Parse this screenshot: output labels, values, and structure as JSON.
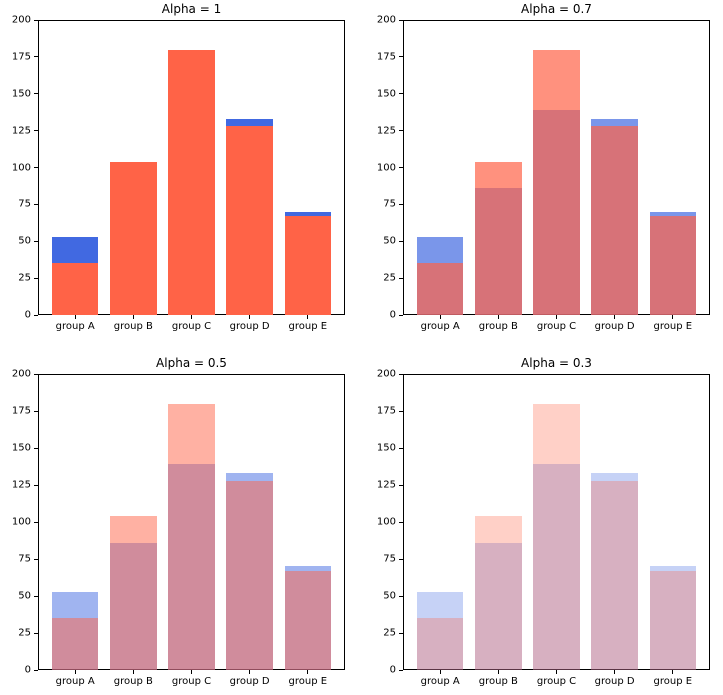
{
  "figure": {
    "background": "#ffffff",
    "text_color": "#000000",
    "spine_color": "#000000",
    "series_colors": {
      "blue": "#4169e1",
      "red": "#ff6347"
    }
  },
  "chart_data": [
    {
      "type": "bar",
      "title": "Alpha = 1",
      "alpha": 1,
      "categories": [
        "group A",
        "group B",
        "group C",
        "group D",
        "group E"
      ],
      "series": [
        {
          "name": "blue",
          "color": "#4169e1",
          "values": [
            53,
            86,
            139,
            133,
            70
          ]
        },
        {
          "name": "red",
          "color": "#ff6347",
          "values": [
            35,
            104,
            180,
            128,
            67
          ]
        }
      ],
      "draw_order": "red bars drawn over blue bars",
      "ylim": [
        0,
        200
      ],
      "yticks": [
        0,
        25,
        50,
        75,
        100,
        125,
        150,
        175,
        200
      ],
      "xlim": [
        -0.64,
        4.64
      ],
      "bar_width": 0.8,
      "grid": false,
      "legend": null
    },
    {
      "type": "bar",
      "title": "Alpha = 0.7",
      "alpha": 0.7,
      "categories": [
        "group A",
        "group B",
        "group C",
        "group D",
        "group E"
      ],
      "series": [
        {
          "name": "blue",
          "color": "#4169e1",
          "values": [
            53,
            86,
            139,
            133,
            70
          ]
        },
        {
          "name": "red",
          "color": "#ff6347",
          "values": [
            35,
            104,
            180,
            128,
            67
          ]
        }
      ],
      "draw_order": "red bars drawn over blue bars",
      "ylim": [
        0,
        200
      ],
      "yticks": [
        0,
        25,
        50,
        75,
        100,
        125,
        150,
        175,
        200
      ],
      "xlim": [
        -0.64,
        4.64
      ],
      "bar_width": 0.8,
      "grid": false,
      "legend": null
    },
    {
      "type": "bar",
      "title": "Alpha = 0.5",
      "alpha": 0.5,
      "categories": [
        "group A",
        "group B",
        "group C",
        "group D",
        "group E"
      ],
      "series": [
        {
          "name": "blue",
          "color": "#4169e1",
          "values": [
            53,
            86,
            139,
            133,
            70
          ]
        },
        {
          "name": "red",
          "color": "#ff6347",
          "values": [
            35,
            104,
            180,
            128,
            67
          ]
        }
      ],
      "draw_order": "red bars drawn over blue bars",
      "ylim": [
        0,
        200
      ],
      "yticks": [
        0,
        25,
        50,
        75,
        100,
        125,
        150,
        175,
        200
      ],
      "xlim": [
        -0.64,
        4.64
      ],
      "bar_width": 0.8,
      "grid": false,
      "legend": null
    },
    {
      "type": "bar",
      "title": "Alpha = 0.3",
      "alpha": 0.3,
      "categories": [
        "group A",
        "group B",
        "group C",
        "group D",
        "group E"
      ],
      "series": [
        {
          "name": "blue",
          "color": "#4169e1",
          "values": [
            53,
            86,
            139,
            133,
            70
          ]
        },
        {
          "name": "red",
          "color": "#ff6347",
          "values": [
            35,
            104,
            180,
            128,
            67
          ]
        }
      ],
      "draw_order": "red bars drawn over blue bars",
      "ylim": [
        0,
        200
      ],
      "yticks": [
        0,
        25,
        50,
        75,
        100,
        125,
        150,
        175,
        200
      ],
      "xlim": [
        -0.64,
        4.64
      ],
      "bar_width": 0.8,
      "grid": false,
      "legend": null
    }
  ]
}
